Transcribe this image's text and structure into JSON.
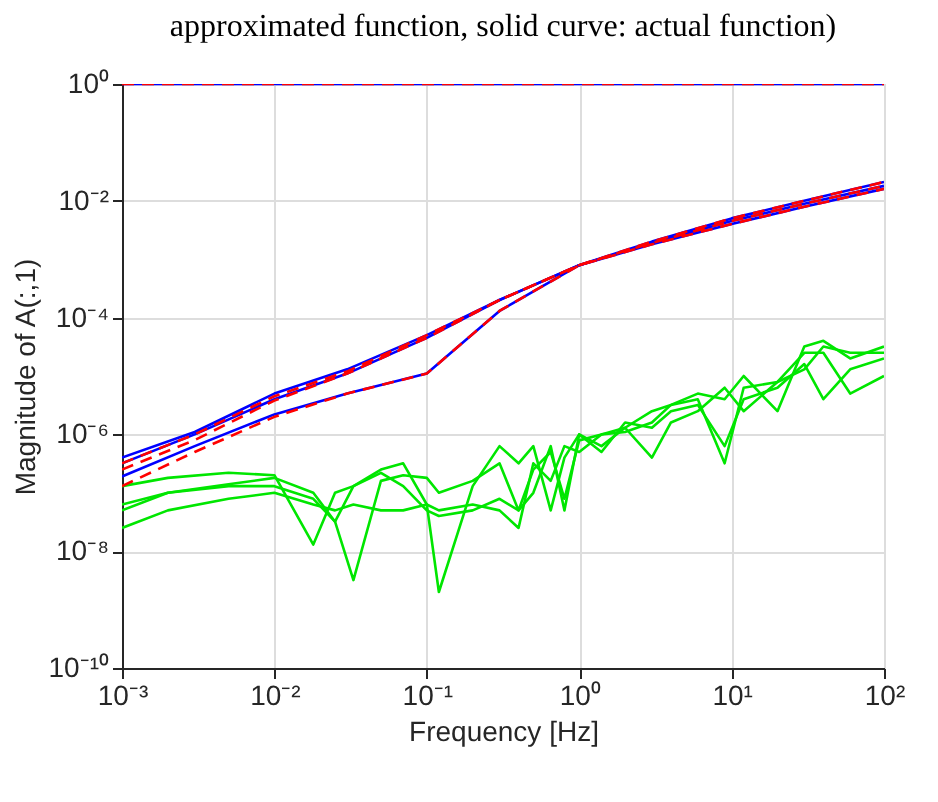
{
  "chart_data": {
    "type": "line",
    "title": "approximated function, solid curve: actual function)",
    "xlabel": "Frequency [Hz]",
    "ylabel": "Magnitude of A(:,1)",
    "log": "xy",
    "grid": true,
    "xlim": [
      0.001,
      100
    ],
    "ylim": [
      1e-10,
      1
    ],
    "xticks": [
      {
        "value": 0.001,
        "label": "10⁻³"
      },
      {
        "value": 0.01,
        "label": "10⁻²"
      },
      {
        "value": 0.1,
        "label": "10⁻¹"
      },
      {
        "value": 1,
        "label": "10⁰"
      },
      {
        "value": 10,
        "label": "10¹"
      },
      {
        "value": 100,
        "label": "10²"
      }
    ],
    "yticks": [
      {
        "value": 1e-10,
        "label": "10⁻¹⁰"
      },
      {
        "value": 1e-08,
        "label": "10⁻⁸"
      },
      {
        "value": 1e-06,
        "label": "10⁻⁶"
      },
      {
        "value": 0.0001,
        "label": "10⁻⁴"
      },
      {
        "value": 0.01,
        "label": "10⁻²"
      },
      {
        "value": 1,
        "label": "10⁰"
      }
    ],
    "x": [
      0.001,
      0.003,
      0.01,
      0.03,
      0.1,
      0.3,
      1,
      3,
      10,
      30,
      100
    ],
    "series": [
      {
        "color": "#00e600",
        "line_style": "solid",
        "x": [
          0.001,
          0.002,
          0.005,
          0.01,
          0.018,
          0.025,
          0.033,
          0.05,
          0.07,
          0.1,
          0.12,
          0.2,
          0.3,
          0.4,
          0.5,
          0.65,
          0.8,
          1,
          1.4,
          2,
          3,
          4,
          6,
          9,
          12,
          20,
          30,
          40,
          60,
          100
        ],
        "values": [
          6.3e-08,
          1e-07,
          1.3e-07,
          1.3e-07,
          7.9e-08,
          3.2e-08,
          3.2e-09,
          1.6e-07,
          2e-07,
          1.8e-07,
          1e-07,
          1.6e-07,
          3.2e-07,
          5e-08,
          2.5e-07,
          5e-07,
          7.9e-08,
          7.9e-07,
          1e-06,
          1.3e-06,
          4e-07,
          1.6e-06,
          2.5e-06,
          6.3e-06,
          2.5e-06,
          7.9e-06,
          1.3e-05,
          3.2e-05,
          2.5e-05,
          2.5e-05
        ]
      },
      {
        "color": "#00e600",
        "line_style": "solid",
        "x": [
          0.001,
          0.002,
          0.005,
          0.01,
          0.018,
          0.025,
          0.033,
          0.05,
          0.07,
          0.1,
          0.12,
          0.2,
          0.3,
          0.4,
          0.5,
          0.65,
          0.8,
          1,
          1.4,
          2,
          3,
          4,
          6,
          9,
          12,
          20,
          30,
          40,
          60,
          100
        ],
        "values": [
          1.3e-07,
          1.8e-07,
          2.2e-07,
          2e-07,
          1.3e-08,
          1e-07,
          1.3e-07,
          2.5e-07,
          3.2e-07,
          6.3e-08,
          2e-09,
          1.3e-07,
          6.3e-07,
          3.2e-07,
          6.3e-07,
          5e-08,
          4e-07,
          1e-06,
          6.3e-07,
          1.3e-06,
          2.5e-06,
          3.2e-06,
          5e-06,
          4e-06,
          1e-05,
          2.5e-06,
          3.2e-05,
          4e-05,
          2e-05,
          3.2e-05
        ]
      },
      {
        "color": "#00e600",
        "line_style": "solid",
        "x": [
          0.001,
          0.002,
          0.005,
          0.01,
          0.018,
          0.025,
          0.033,
          0.05,
          0.07,
          0.1,
          0.12,
          0.2,
          0.3,
          0.4,
          0.5,
          0.65,
          0.8,
          1,
          1.4,
          2,
          3,
          4,
          6,
          9,
          12,
          20,
          30,
          40,
          60,
          100
        ],
        "values": [
          5e-08,
          1e-07,
          1.4e-07,
          1.8e-07,
          1e-07,
          3.2e-08,
          1.3e-07,
          2.2e-07,
          1.3e-07,
          5e-08,
          4e-08,
          5e-08,
          7.9e-08,
          5e-08,
          1e-07,
          6.3e-07,
          5e-08,
          1e-06,
          5e-07,
          1.6e-06,
          1.3e-06,
          2.5e-06,
          3.2e-06,
          6.3e-07,
          4e-06,
          6.3e-06,
          1.6e-05,
          4e-06,
          1.3e-05,
          2e-05
        ]
      },
      {
        "color": "#00e600",
        "line_style": "solid",
        "x": [
          0.001,
          0.002,
          0.005,
          0.01,
          0.018,
          0.025,
          0.033,
          0.05,
          0.07,
          0.1,
          0.12,
          0.2,
          0.3,
          0.4,
          0.5,
          0.65,
          0.8,
          1,
          1.4,
          2,
          3,
          4,
          6,
          9,
          12,
          20,
          30,
          40,
          60,
          100
        ],
        "values": [
          2.5e-08,
          5e-08,
          7.9e-08,
          1e-07,
          6.3e-08,
          5e-08,
          6.3e-08,
          5e-08,
          5e-08,
          6.3e-08,
          5e-08,
          6.3e-08,
          5e-08,
          2.5e-08,
          3.2e-07,
          1.6e-07,
          6.3e-07,
          5e-07,
          1e-06,
          1.1e-06,
          1.6e-06,
          3.2e-06,
          4e-06,
          3.2e-07,
          6.3e-06,
          7.9e-06,
          2.5e-05,
          2.5e-05,
          5e-06,
          1e-05
        ]
      },
      {
        "color": "#0000ff",
        "line_style": "solid",
        "values": [
          4e-07,
          1.1e-06,
          5e-06,
          1.3e-05,
          5e-05,
          0.0002,
          0.00079,
          0.002,
          0.005,
          0.01,
          0.021
        ]
      },
      {
        "color": "#0000ff",
        "line_style": "solid",
        "values": [
          3.2e-07,
          1e-06,
          4e-06,
          1.1e-05,
          4.5e-05,
          0.0002,
          0.00079,
          0.0019,
          0.0045,
          0.0089,
          0.018
        ]
      },
      {
        "color": "#0000ff",
        "line_style": "solid",
        "values": [
          1.9e-07,
          6.3e-07,
          2.2e-06,
          5e-06,
          1.1e-05,
          0.00013,
          0.00079,
          0.0018,
          0.004,
          0.0079,
          0.016
        ]
      },
      {
        "color": "#ff0000",
        "line_style": "dashed",
        "values": [
          3.2e-07,
          1e-06,
          4.5e-06,
          1.2e-05,
          5e-05,
          0.0002,
          0.00079,
          0.002,
          0.005,
          0.01,
          0.021
        ]
      },
      {
        "color": "#ff0000",
        "line_style": "dashed",
        "values": [
          2.5e-07,
          8e-07,
          3.8e-06,
          1.1e-05,
          4.5e-05,
          0.0002,
          0.00079,
          0.0019,
          0.0045,
          0.0089,
          0.018
        ]
      },
      {
        "color": "#ff0000",
        "line_style": "dashed",
        "values": [
          1.3e-07,
          5e-07,
          2e-06,
          5e-06,
          1.1e-05,
          0.00013,
          0.00079,
          0.0018,
          0.004,
          0.0079,
          0.016
        ]
      },
      {
        "color": "#0000ff",
        "line_style": "solid",
        "x": [
          0.001,
          100
        ],
        "values": [
          1,
          1
        ]
      },
      {
        "color": "#ff0000",
        "line_style": "dashed",
        "x": [
          0.001,
          100
        ],
        "values": [
          1,
          1
        ]
      }
    ]
  }
}
